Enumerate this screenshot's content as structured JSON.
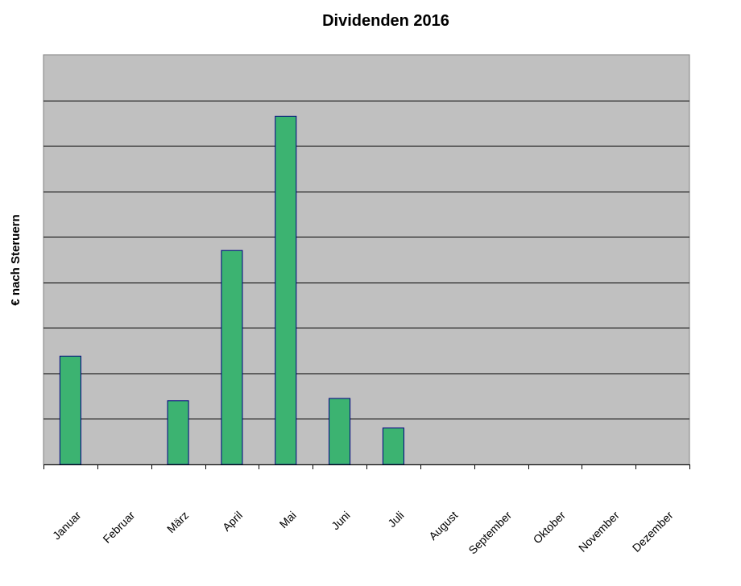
{
  "chart_data": {
    "type": "bar",
    "title": "Dividenden 2016",
    "xlabel": "",
    "ylabel": "€ nach Steruern",
    "categories": [
      "Januar",
      "Februar",
      "März",
      "April",
      "Mai",
      "Juni",
      "Juli",
      "August",
      "September",
      "Oktober",
      "November",
      "Dezember"
    ],
    "values": [
      2.38,
      0,
      1.4,
      4.7,
      7.65,
      1.45,
      0.8,
      0,
      0,
      0,
      0,
      0
    ],
    "ylim": [
      0,
      9
    ],
    "gridlines": true,
    "y_tick_labels_shown": false,
    "legend": "none",
    "colors": {
      "bar_fill": "#3cb371",
      "bar_stroke": "#000080",
      "plot_background": "#c0c0c0",
      "gridline": "#000000"
    }
  }
}
